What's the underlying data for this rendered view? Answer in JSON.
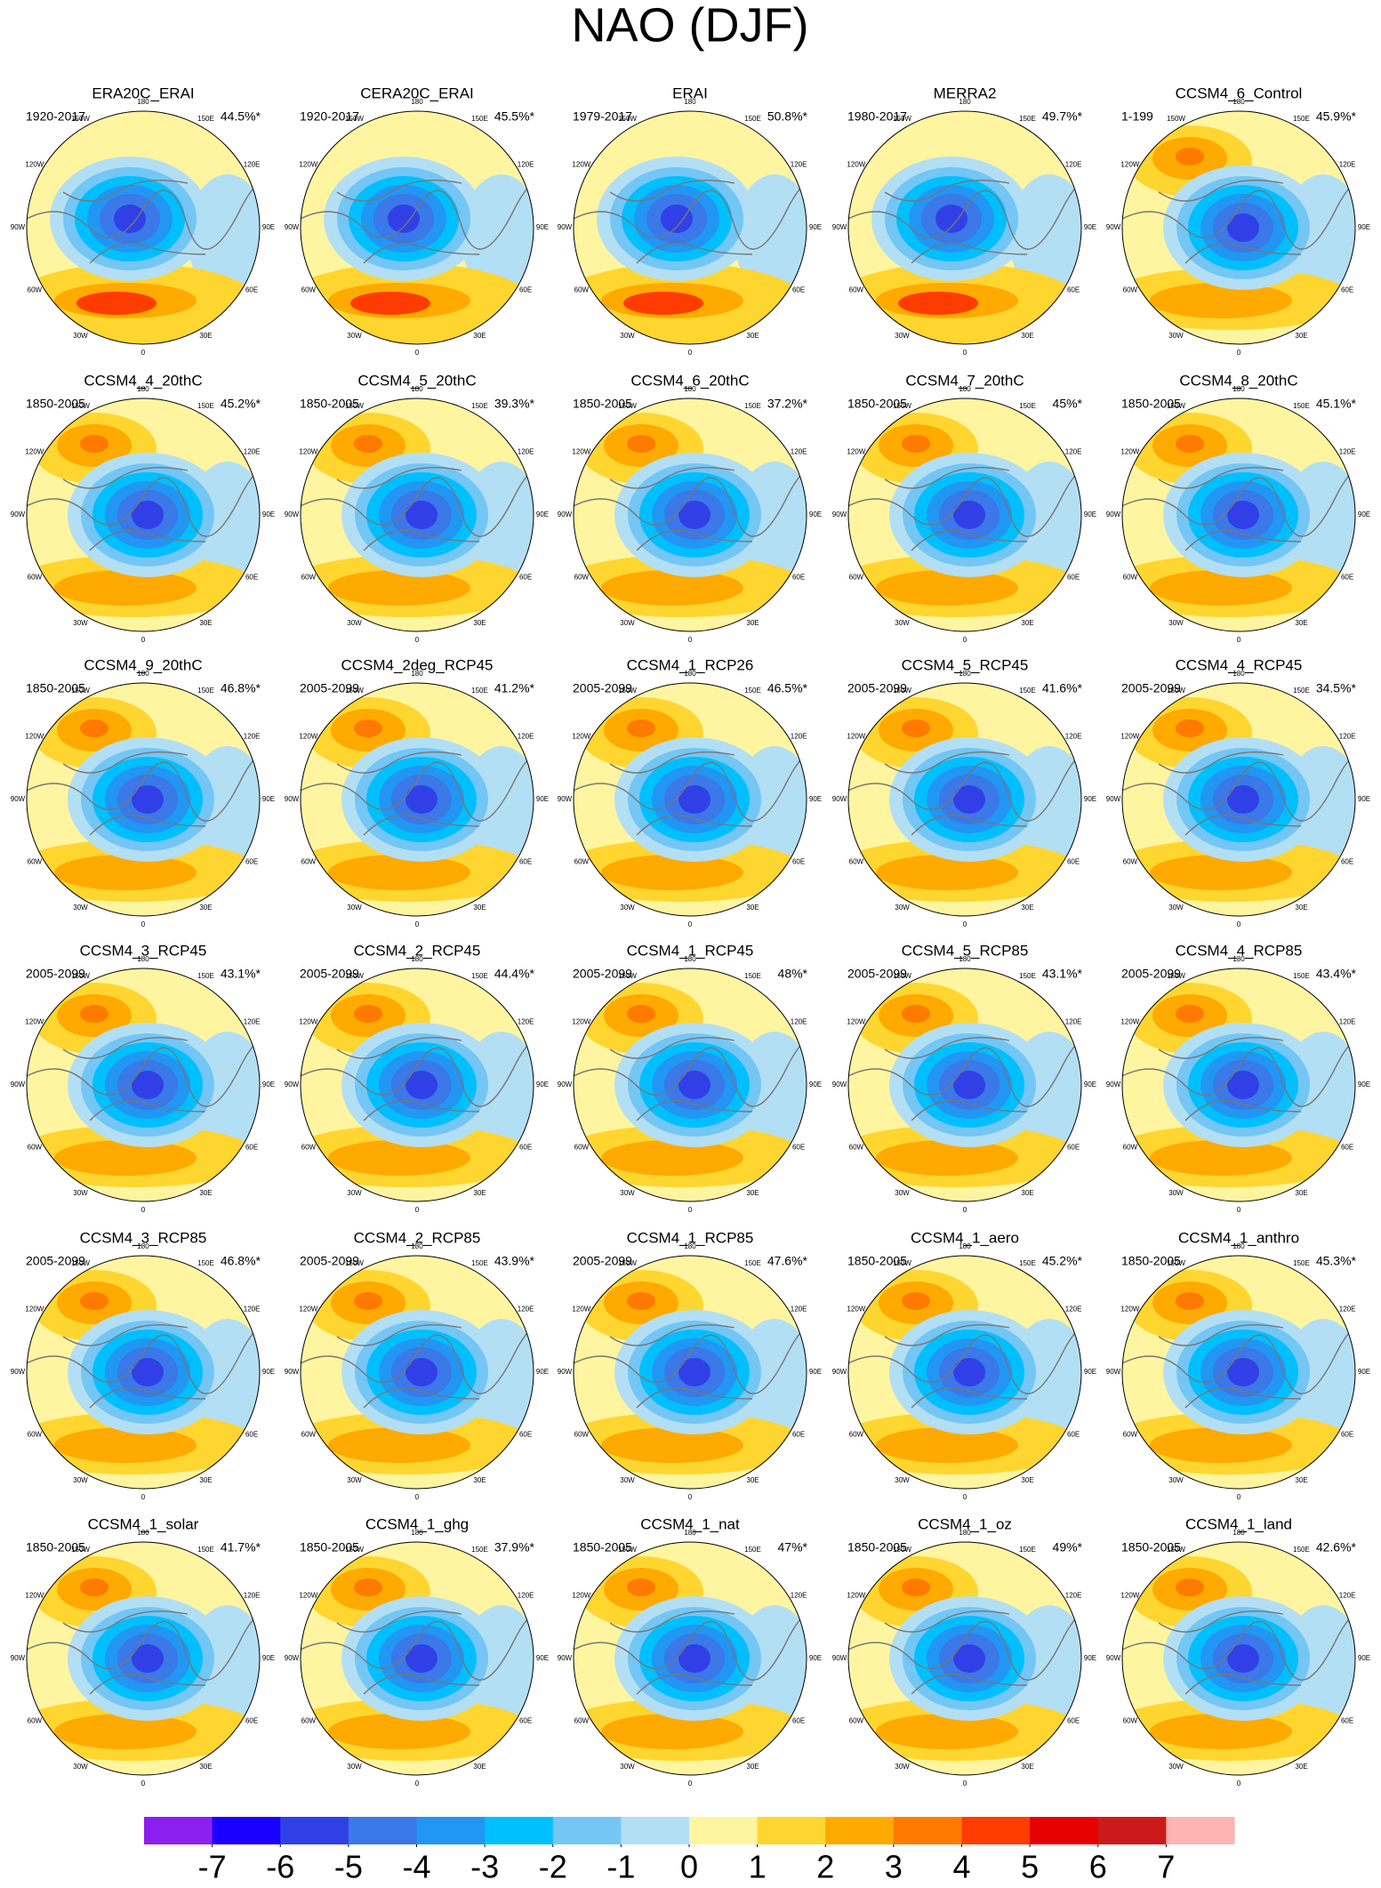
{
  "title": "NAO (DJF)",
  "panels": [
    {
      "name": "ERA20C_ERAI",
      "period": "1920-2017",
      "variance": "44.5%*"
    },
    {
      "name": "CERA20C_ERAI",
      "period": "1920-2017",
      "variance": "45.5%*"
    },
    {
      "name": "ERAI",
      "period": "1979-2017",
      "variance": "50.8%*"
    },
    {
      "name": "MERRA2",
      "period": "1980-2017",
      "variance": "49.7%*"
    },
    {
      "name": "CCSM4_6_Control",
      "period": "1-199",
      "variance": "45.9%*"
    },
    {
      "name": "CCSM4_4_20thC",
      "period": "1850-2005",
      "variance": "45.2%*"
    },
    {
      "name": "CCSM4_5_20thC",
      "period": "1850-2005",
      "variance": "39.3%*"
    },
    {
      "name": "CCSM4_6_20thC",
      "period": "1850-2005",
      "variance": "37.2%*"
    },
    {
      "name": "CCSM4_7_20thC",
      "period": "1850-2005",
      "variance": "45%*"
    },
    {
      "name": "CCSM4_8_20thC",
      "period": "1850-2005",
      "variance": "45.1%*"
    },
    {
      "name": "CCSM4_9_20thC",
      "period": "1850-2005",
      "variance": "46.8%*"
    },
    {
      "name": "CCSM4_2deg_RCP45",
      "period": "2005-2099",
      "variance": "41.2%*"
    },
    {
      "name": "CCSM4_1_RCP26",
      "period": "2005-2099",
      "variance": "46.5%*"
    },
    {
      "name": "CCSM4_5_RCP45",
      "period": "2005-2099",
      "variance": "41.6%*"
    },
    {
      "name": "CCSM4_4_RCP45",
      "period": "2005-2099",
      "variance": "34.5%*"
    },
    {
      "name": "CCSM4_3_RCP45",
      "period": "2005-2099",
      "variance": "43.1%*"
    },
    {
      "name": "CCSM4_2_RCP45",
      "period": "2005-2099",
      "variance": "44.4%*"
    },
    {
      "name": "CCSM4_1_RCP45",
      "period": "2005-2099",
      "variance": "48%*"
    },
    {
      "name": "CCSM4_5_RCP85",
      "period": "2005-2099",
      "variance": "43.1%*"
    },
    {
      "name": "CCSM4_4_RCP85",
      "period": "2005-2099",
      "variance": "43.4%*"
    },
    {
      "name": "CCSM4_3_RCP85",
      "period": "2005-2099",
      "variance": "46.8%*"
    },
    {
      "name": "CCSM4_2_RCP85",
      "period": "2005-2099",
      "variance": "43.9%*"
    },
    {
      "name": "CCSM4_1_RCP85",
      "period": "2005-2099",
      "variance": "47.6%*"
    },
    {
      "name": "CCSM4_1_aero",
      "period": "1850-2005",
      "variance": "45.2%*"
    },
    {
      "name": "CCSM4_1_anthro",
      "period": "1850-2005",
      "variance": "45.3%*"
    },
    {
      "name": "CCSM4_1_solar",
      "period": "1850-2005",
      "variance": "41.7%*"
    },
    {
      "name": "CCSM4_1_ghg",
      "period": "1850-2005",
      "variance": "37.9%*"
    },
    {
      "name": "CCSM4_1_nat",
      "period": "1850-2005",
      "variance": "47%*"
    },
    {
      "name": "CCSM4_1_oz",
      "period": "1850-2005",
      "variance": "49%*"
    },
    {
      "name": "CCSM4_1_land",
      "period": "1850-2005",
      "variance": "42.6%*"
    }
  ],
  "longitude_labels": [
    "180",
    "150E",
    "120E",
    "90E",
    "60E",
    "30E",
    "0",
    "30W",
    "60W",
    "90W",
    "120W",
    "150W"
  ],
  "colorbar": {
    "colors": [
      "#8b1ff0",
      "#1a00ff",
      "#3040e6",
      "#3b78e8",
      "#2196f3",
      "#00bfff",
      "#74c6f5",
      "#b3dff5",
      "#fff5a0",
      "#ffd530",
      "#ffaa00",
      "#ff7a00",
      "#ff3c00",
      "#e60000",
      "#cc1a1a",
      "#ffb3b3"
    ],
    "ticks": [
      -7,
      -6,
      -5,
      -4,
      -3,
      -2,
      -1,
      0,
      1,
      2,
      3,
      4,
      5,
      6,
      7
    ]
  }
}
